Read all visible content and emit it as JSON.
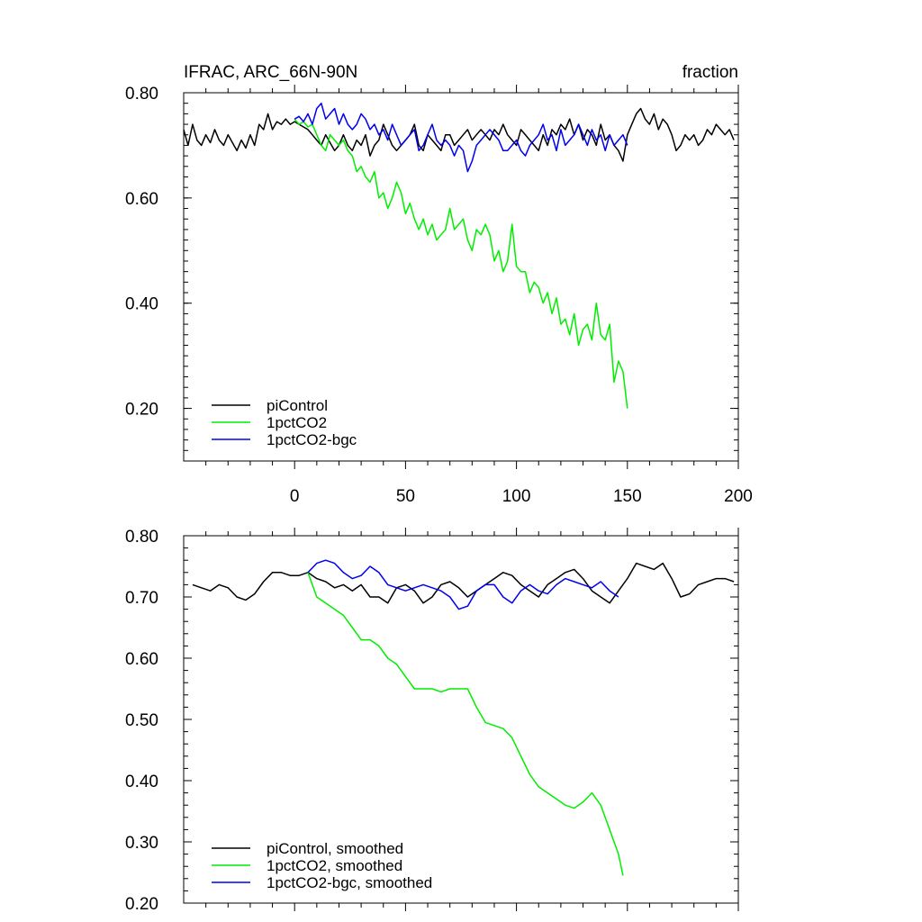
{
  "figure": {
    "title_left": "IFRAC, ARC_66N-90N",
    "title_right": "fraction"
  },
  "chart_data": [
    {
      "type": "line",
      "panel": "top",
      "xlim": [
        -50,
        200
      ],
      "ylim": [
        0.1,
        0.8
      ],
      "xticks": [
        0,
        50,
        100,
        150,
        200
      ],
      "xtick_labels": [
        "0",
        "50",
        "100",
        "150",
        "200"
      ],
      "yticks": [
        0.2,
        0.4,
        0.6,
        0.8
      ],
      "ytick_labels": [
        "0.20",
        "0.40",
        "0.60",
        "0.80"
      ],
      "xlabel": "",
      "ylabel": "",
      "grid": false,
      "legend_placement": "bottom-left",
      "series": [
        {
          "name": "piControl",
          "color": "#000000",
          "x": [
            -50,
            -48,
            -46,
            -44,
            -42,
            -40,
            -38,
            -36,
            -34,
            -32,
            -30,
            -28,
            -26,
            -24,
            -22,
            -20,
            -18,
            -16,
            -14,
            -12,
            -10,
            -8,
            -6,
            -4,
            -2,
            0,
            2,
            4,
            6,
            8,
            10,
            12,
            14,
            16,
            18,
            20,
            22,
            24,
            26,
            28,
            30,
            32,
            34,
            36,
            38,
            40,
            42,
            44,
            46,
            48,
            50,
            52,
            54,
            56,
            58,
            60,
            62,
            64,
            66,
            68,
            70,
            72,
            74,
            76,
            78,
            80,
            82,
            84,
            86,
            88,
            90,
            92,
            94,
            96,
            98,
            100,
            102,
            104,
            106,
            108,
            110,
            112,
            114,
            116,
            118,
            120,
            122,
            124,
            126,
            128,
            130,
            132,
            134,
            136,
            138,
            140,
            142,
            144,
            146,
            148,
            150,
            152,
            154,
            156,
            158,
            160,
            162,
            164,
            166,
            168,
            170,
            172,
            174,
            176,
            178,
            180,
            182,
            184,
            186,
            188,
            190,
            192,
            194,
            196,
            198
          ],
          "y": [
            0.73,
            0.7,
            0.74,
            0.71,
            0.7,
            0.72,
            0.705,
            0.73,
            0.71,
            0.7,
            0.72,
            0.705,
            0.69,
            0.71,
            0.695,
            0.72,
            0.7,
            0.74,
            0.73,
            0.76,
            0.73,
            0.745,
            0.74,
            0.75,
            0.74,
            0.745,
            0.74,
            0.735,
            0.73,
            0.72,
            0.71,
            0.7,
            0.72,
            0.705,
            0.69,
            0.7,
            0.72,
            0.7,
            0.69,
            0.71,
            0.7,
            0.72,
            0.68,
            0.7,
            0.71,
            0.74,
            0.72,
            0.7,
            0.69,
            0.7,
            0.71,
            0.72,
            0.74,
            0.7,
            0.69,
            0.72,
            0.71,
            0.7,
            0.69,
            0.72,
            0.72,
            0.7,
            0.71,
            0.72,
            0.73,
            0.71,
            0.72,
            0.73,
            0.72,
            0.71,
            0.73,
            0.72,
            0.74,
            0.72,
            0.71,
            0.7,
            0.73,
            0.72,
            0.71,
            0.7,
            0.69,
            0.72,
            0.7,
            0.73,
            0.72,
            0.74,
            0.73,
            0.75,
            0.72,
            0.74,
            0.71,
            0.73,
            0.72,
            0.7,
            0.74,
            0.71,
            0.72,
            0.7,
            0.69,
            0.67,
            0.72,
            0.74,
            0.76,
            0.77,
            0.75,
            0.74,
            0.76,
            0.73,
            0.75,
            0.74,
            0.72,
            0.69,
            0.7,
            0.72,
            0.71,
            0.72,
            0.7,
            0.71,
            0.73,
            0.72,
            0.74,
            0.73,
            0.72,
            0.73,
            0.71
          ]
        },
        {
          "name": "1pctCO2",
          "color": "#00ee00",
          "x": [
            0,
            2,
            4,
            6,
            8,
            10,
            12,
            14,
            16,
            18,
            20,
            22,
            24,
            26,
            28,
            30,
            32,
            34,
            36,
            38,
            40,
            42,
            44,
            46,
            48,
            50,
            52,
            54,
            56,
            58,
            60,
            62,
            64,
            66,
            68,
            70,
            72,
            74,
            76,
            78,
            80,
            82,
            84,
            86,
            88,
            90,
            92,
            94,
            96,
            98,
            100,
            102,
            104,
            106,
            108,
            110,
            112,
            114,
            116,
            118,
            120,
            122,
            124,
            126,
            128,
            130,
            132,
            134,
            136,
            138,
            140,
            142,
            144,
            146,
            148,
            150
          ],
          "y": [
            0.75,
            0.74,
            0.745,
            0.735,
            0.74,
            0.72,
            0.7,
            0.69,
            0.72,
            0.71,
            0.7,
            0.71,
            0.69,
            0.68,
            0.65,
            0.66,
            0.64,
            0.63,
            0.65,
            0.6,
            0.61,
            0.58,
            0.6,
            0.63,
            0.61,
            0.57,
            0.59,
            0.56,
            0.54,
            0.56,
            0.53,
            0.55,
            0.52,
            0.53,
            0.54,
            0.58,
            0.54,
            0.55,
            0.56,
            0.52,
            0.5,
            0.54,
            0.53,
            0.55,
            0.53,
            0.48,
            0.5,
            0.46,
            0.48,
            0.55,
            0.47,
            0.46,
            0.46,
            0.42,
            0.44,
            0.43,
            0.4,
            0.42,
            0.38,
            0.41,
            0.36,
            0.37,
            0.34,
            0.38,
            0.32,
            0.35,
            0.36,
            0.33,
            0.4,
            0.34,
            0.33,
            0.36,
            0.25,
            0.29,
            0.27,
            0.2
          ]
        },
        {
          "name": "1pctCO2-bgc",
          "color": "#0000ee",
          "x": [
            0,
            2,
            4,
            6,
            8,
            10,
            12,
            14,
            16,
            18,
            20,
            22,
            24,
            26,
            28,
            30,
            32,
            34,
            36,
            38,
            40,
            42,
            44,
            46,
            48,
            50,
            52,
            54,
            56,
            58,
            60,
            62,
            64,
            66,
            68,
            70,
            72,
            74,
            76,
            78,
            80,
            82,
            84,
            86,
            88,
            90,
            92,
            94,
            96,
            98,
            100,
            102,
            104,
            106,
            108,
            110,
            112,
            114,
            116,
            118,
            120,
            122,
            124,
            126,
            128,
            130,
            132,
            134,
            136,
            138,
            140,
            142,
            144,
            146,
            148,
            150
          ],
          "y": [
            0.75,
            0.755,
            0.745,
            0.76,
            0.74,
            0.77,
            0.78,
            0.75,
            0.76,
            0.77,
            0.74,
            0.76,
            0.74,
            0.73,
            0.74,
            0.76,
            0.75,
            0.73,
            0.74,
            0.72,
            0.73,
            0.71,
            0.74,
            0.72,
            0.7,
            0.71,
            0.72,
            0.73,
            0.69,
            0.7,
            0.72,
            0.74,
            0.71,
            0.7,
            0.71,
            0.7,
            0.68,
            0.7,
            0.69,
            0.65,
            0.67,
            0.7,
            0.71,
            0.72,
            0.73,
            0.72,
            0.71,
            0.69,
            0.69,
            0.7,
            0.71,
            0.69,
            0.68,
            0.7,
            0.71,
            0.72,
            0.74,
            0.71,
            0.72,
            0.69,
            0.73,
            0.7,
            0.71,
            0.72,
            0.74,
            0.72,
            0.7,
            0.73,
            0.71,
            0.72,
            0.69,
            0.72,
            0.7,
            0.71,
            0.72,
            0.7
          ]
        }
      ]
    },
    {
      "type": "line",
      "panel": "bottom",
      "xlim": [
        -50,
        200
      ],
      "ylim": [
        0.2,
        0.8
      ],
      "xticks": [
        0,
        50,
        100,
        150,
        200
      ],
      "xtick_labels": [
        "",
        "",
        "",
        "",
        ""
      ],
      "yticks": [
        0.2,
        0.3,
        0.4,
        0.5,
        0.6,
        0.7,
        0.8
      ],
      "ytick_labels": [
        "0.20",
        "0.30",
        "0.40",
        "0.50",
        "0.60",
        "0.70",
        "0.80"
      ],
      "xlabel": "",
      "ylabel": "",
      "grid": false,
      "legend_placement": "bottom-left",
      "series": [
        {
          "name": "piControl, smoothed",
          "color": "#000000",
          "x": [
            -46,
            -42,
            -38,
            -34,
            -30,
            -26,
            -22,
            -18,
            -14,
            -10,
            -6,
            -2,
            2,
            6,
            10,
            14,
            18,
            22,
            26,
            30,
            34,
            38,
            42,
            46,
            50,
            54,
            58,
            62,
            66,
            70,
            74,
            78,
            82,
            86,
            90,
            94,
            98,
            102,
            106,
            110,
            114,
            118,
            122,
            126,
            130,
            134,
            138,
            142,
            146,
            150,
            154,
            158,
            162,
            166,
            170,
            174,
            178,
            182,
            186,
            190,
            194,
            198
          ],
          "y": [
            0.72,
            0.715,
            0.71,
            0.72,
            0.715,
            0.7,
            0.695,
            0.705,
            0.725,
            0.74,
            0.74,
            0.735,
            0.735,
            0.74,
            0.73,
            0.725,
            0.715,
            0.72,
            0.71,
            0.72,
            0.7,
            0.7,
            0.69,
            0.715,
            0.72,
            0.71,
            0.69,
            0.7,
            0.72,
            0.725,
            0.715,
            0.7,
            0.71,
            0.72,
            0.73,
            0.74,
            0.735,
            0.72,
            0.71,
            0.7,
            0.72,
            0.73,
            0.74,
            0.745,
            0.73,
            0.71,
            0.7,
            0.69,
            0.71,
            0.73,
            0.755,
            0.75,
            0.745,
            0.755,
            0.73,
            0.7,
            0.705,
            0.72,
            0.725,
            0.73,
            0.73,
            0.725
          ]
        },
        {
          "name": "1pctCO2, smoothed",
          "color": "#00ee00",
          "x": [
            6,
            10,
            14,
            18,
            22,
            26,
            30,
            34,
            38,
            42,
            46,
            50,
            54,
            58,
            62,
            66,
            70,
            74,
            78,
            82,
            86,
            90,
            94,
            98,
            102,
            106,
            110,
            114,
            118,
            122,
            126,
            130,
            134,
            138,
            142,
            146,
            148
          ],
          "y": [
            0.74,
            0.7,
            0.69,
            0.68,
            0.67,
            0.65,
            0.63,
            0.63,
            0.62,
            0.6,
            0.59,
            0.57,
            0.55,
            0.55,
            0.55,
            0.545,
            0.55,
            0.55,
            0.55,
            0.52,
            0.495,
            0.49,
            0.485,
            0.47,
            0.44,
            0.41,
            0.39,
            0.38,
            0.37,
            0.36,
            0.355,
            0.365,
            0.38,
            0.36,
            0.32,
            0.28,
            0.245
          ]
        },
        {
          "name": "1pctCO2-bgc, smoothed",
          "color": "#0000ee",
          "x": [
            6,
            10,
            14,
            18,
            22,
            26,
            30,
            34,
            38,
            42,
            46,
            50,
            54,
            58,
            62,
            66,
            70,
            74,
            78,
            82,
            86,
            90,
            94,
            98,
            102,
            106,
            110,
            114,
            118,
            122,
            126,
            130,
            134,
            138,
            142,
            146
          ],
          "y": [
            0.74,
            0.755,
            0.76,
            0.755,
            0.74,
            0.73,
            0.735,
            0.75,
            0.74,
            0.72,
            0.715,
            0.71,
            0.715,
            0.72,
            0.715,
            0.71,
            0.7,
            0.68,
            0.685,
            0.71,
            0.72,
            0.72,
            0.7,
            0.69,
            0.71,
            0.72,
            0.71,
            0.705,
            0.72,
            0.73,
            0.725,
            0.72,
            0.715,
            0.725,
            0.71,
            0.7
          ]
        }
      ]
    }
  ]
}
